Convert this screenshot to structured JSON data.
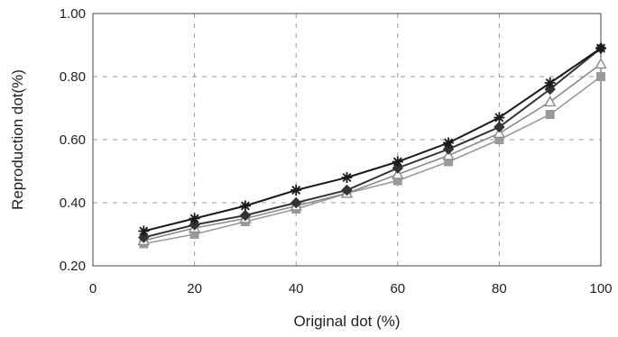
{
  "chart_data": {
    "type": "line",
    "title": "",
    "xlabel": "Original dot (%)",
    "ylabel": "Reproduction dot(%)",
    "xlim": [
      0,
      100
    ],
    "ylim": [
      0.2,
      1.0
    ],
    "xticks": [
      "0",
      "20",
      "40",
      "60",
      "80",
      "100"
    ],
    "yticks": [
      "0.20",
      "0.40",
      "0.60",
      "0.80",
      "1.00"
    ],
    "grid": "dashed",
    "legend": "none",
    "x": [
      10,
      20,
      30,
      40,
      50,
      60,
      70,
      80,
      90,
      100
    ],
    "series": [
      {
        "marker": "star",
        "color": "#1a1a1a",
        "values": [
          0.31,
          0.35,
          0.39,
          0.44,
          0.48,
          0.53,
          0.59,
          0.67,
          0.78,
          0.89
        ]
      },
      {
        "marker": "diamond",
        "color": "#333333",
        "values": [
          0.29,
          0.33,
          0.36,
          0.4,
          0.44,
          0.51,
          0.57,
          0.64,
          0.76,
          0.89
        ]
      },
      {
        "marker": "triangle",
        "color": "#8a8a8a",
        "values": [
          0.28,
          0.32,
          0.35,
          0.39,
          0.43,
          0.49,
          0.55,
          0.62,
          0.72,
          0.84
        ]
      },
      {
        "marker": "square",
        "color": "#9a9a9a",
        "values": [
          0.27,
          0.3,
          0.34,
          0.38,
          0.43,
          0.47,
          0.53,
          0.6,
          0.68,
          0.8
        ]
      }
    ]
  }
}
